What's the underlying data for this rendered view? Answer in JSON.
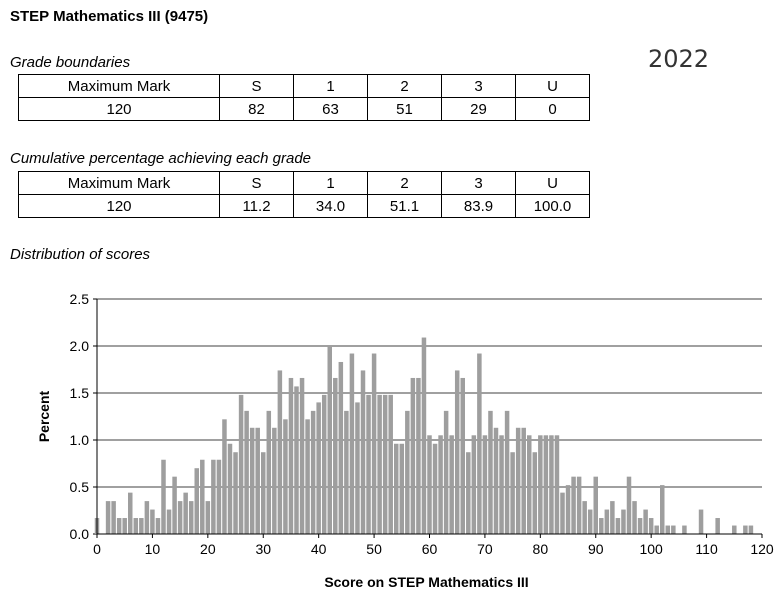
{
  "header": {
    "title": "STEP Mathematics III (9475)",
    "year": "2022"
  },
  "grade_boundaries": {
    "label": "Grade boundaries",
    "headers": [
      "Maximum Mark",
      "S",
      "1",
      "2",
      "3",
      "U"
    ],
    "values": [
      "120",
      "82",
      "63",
      "51",
      "29",
      "0"
    ]
  },
  "cumulative": {
    "label": "Cumulative percentage achieving each grade",
    "headers": [
      "Maximum Mark",
      "S",
      "1",
      "2",
      "3",
      "U"
    ],
    "values": [
      "120",
      "11.2",
      "34.0",
      "51.1",
      "83.9",
      "100.0"
    ]
  },
  "distribution": {
    "label": "Distribution of scores"
  },
  "chart_data": {
    "type": "bar",
    "title": "",
    "xlabel": "Score on STEP Mathematics III",
    "ylabel": "Percent",
    "xlim": [
      0,
      120
    ],
    "ylim": [
      0,
      2.5
    ],
    "xticks": [
      "0",
      "10",
      "20",
      "30",
      "40",
      "50",
      "60",
      "70",
      "80",
      "90",
      "100",
      "110",
      "120"
    ],
    "yticks": [
      "0.0",
      "0.5",
      "1.0",
      "1.5",
      "2.0",
      "2.5"
    ],
    "grid": "horizontal",
    "bar_color": "#9e9e9e",
    "x": [
      0,
      1,
      2,
      3,
      4,
      5,
      6,
      7,
      8,
      9,
      10,
      11,
      12,
      13,
      14,
      15,
      16,
      17,
      18,
      19,
      20,
      21,
      22,
      23,
      24,
      25,
      26,
      27,
      28,
      29,
      30,
      31,
      32,
      33,
      34,
      35,
      36,
      37,
      38,
      39,
      40,
      41,
      42,
      43,
      44,
      45,
      46,
      47,
      48,
      49,
      50,
      51,
      52,
      53,
      54,
      55,
      56,
      57,
      58,
      59,
      60,
      61,
      62,
      63,
      64,
      65,
      66,
      67,
      68,
      69,
      70,
      71,
      72,
      73,
      74,
      75,
      76,
      77,
      78,
      79,
      80,
      81,
      82,
      83,
      84,
      85,
      86,
      87,
      88,
      89,
      90,
      91,
      92,
      93,
      94,
      95,
      96,
      97,
      98,
      99,
      100,
      101,
      102,
      103,
      104,
      105,
      106,
      107,
      108,
      109,
      110,
      111,
      112,
      113,
      114,
      115,
      116,
      117,
      118,
      119,
      120
    ],
    "values": [
      0.17,
      0.0,
      0.35,
      0.35,
      0.17,
      0.17,
      0.44,
      0.17,
      0.17,
      0.35,
      0.26,
      0.17,
      0.79,
      0.26,
      0.61,
      0.35,
      0.44,
      0.35,
      0.7,
      0.79,
      0.35,
      0.79,
      0.79,
      1.22,
      0.96,
      0.87,
      1.48,
      1.31,
      1.13,
      1.13,
      0.87,
      1.31,
      1.13,
      1.74,
      1.22,
      1.66,
      1.57,
      1.66,
      1.22,
      1.31,
      1.4,
      1.48,
      2.0,
      1.66,
      1.83,
      1.31,
      1.92,
      1.4,
      1.74,
      1.48,
      1.92,
      1.48,
      1.48,
      1.48,
      0.96,
      0.96,
      1.31,
      1.66,
      1.66,
      2.09,
      1.05,
      0.96,
      1.05,
      1.31,
      1.05,
      1.74,
      1.66,
      0.87,
      1.05,
      1.92,
      1.05,
      1.31,
      1.13,
      1.05,
      1.31,
      0.87,
      1.13,
      1.13,
      1.05,
      0.87,
      1.05,
      1.05,
      1.05,
      1.05,
      0.44,
      0.52,
      0.61,
      0.61,
      0.35,
      0.26,
      0.61,
      0.17,
      0.26,
      0.35,
      0.17,
      0.26,
      0.61,
      0.35,
      0.17,
      0.26,
      0.17,
      0.09,
      0.52,
      0.09,
      0.09,
      0.0,
      0.09,
      0.0,
      0.0,
      0.26,
      0.0,
      0.0,
      0.17,
      0.0,
      0.0,
      0.09,
      0.0,
      0.09,
      0.09,
      0.0,
      0.0
    ]
  }
}
